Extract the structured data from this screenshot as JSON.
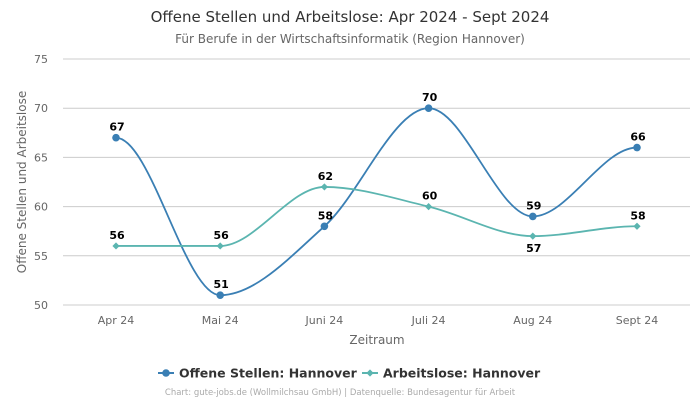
{
  "chart_data": {
    "type": "line",
    "title": "Offene Stellen und Arbeitslose: Apr 2024 - Sept 2024",
    "subtitle": "Für Berufe in der Wirtschaftsinformatik (Region Hannover)",
    "xlabel": "Zeitraum",
    "ylabel": "Offene Stellen und Arbeitslose",
    "categories": [
      "Apr 24",
      "Mai 24",
      "Juni 24",
      "Juli 24",
      "Aug 24",
      "Sept 24"
    ],
    "ylim": [
      50,
      75
    ],
    "yticks": [
      50,
      55,
      60,
      65,
      70,
      75
    ],
    "grid": true,
    "legend_position": "bottom",
    "series": [
      {
        "name": "Offene Stellen: Hannover",
        "color": "#3a7fb4",
        "marker": "circle",
        "values": [
          67,
          51,
          58,
          70,
          59,
          66
        ]
      },
      {
        "name": "Arbeitslose: Hannover",
        "color": "#5bb5b0",
        "marker": "diamond",
        "values": [
          56,
          56,
          62,
          60,
          57,
          58
        ]
      }
    ]
  },
  "footer": "Chart: gute-jobs.de (Wollmilchsau GmbH) | Datenquelle: Bundesagentur für Arbeit"
}
